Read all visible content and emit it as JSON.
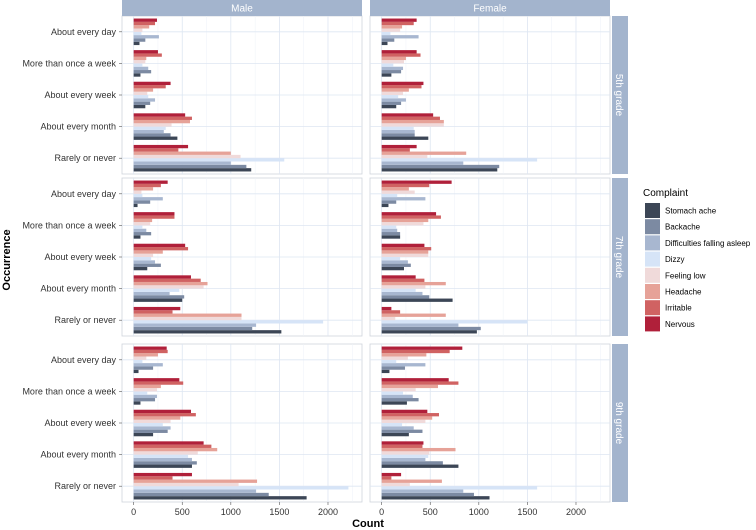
{
  "chart_data": {
    "type": "bar",
    "orientation": "horizontal",
    "xlabel": "Count",
    "ylabel": "Occurrence",
    "xlim": [
      -120,
      2350
    ],
    "xticks": [
      0,
      500,
      1000,
      1500,
      2000
    ],
    "col_facets": [
      "Male",
      "Female"
    ],
    "row_facets": [
      "5th grade",
      "7th grade",
      "9th grade"
    ],
    "categories": [
      "About every day",
      "More than once a week",
      "About every week",
      "About every month",
      "Rarely or never"
    ],
    "legend": {
      "title": "Complaint",
      "entries": [
        {
          "name": "Stomach ache",
          "color": "#3c4656"
        },
        {
          "name": "Backache",
          "color": "#7c8aa2"
        },
        {
          "name": "Difficulties falling asleep",
          "color": "#a8b7d0"
        },
        {
          "name": "Dizzy",
          "color": "#d6e4f7"
        },
        {
          "name": "Feeling low",
          "color": "#f0dada"
        },
        {
          "name": "Headache",
          "color": "#e6a298"
        },
        {
          "name": "Irritable",
          "color": "#d06262"
        },
        {
          "name": "Nervous",
          "color": "#b0203a"
        }
      ]
    },
    "series_order_note": "values per category listed bottom-to-top: Stomach ache, Backache, Difficulties falling asleep, Dizzy, Feeling low, Headache, Irritable, Nervous",
    "panels": [
      {
        "grade": "5th grade",
        "gender": "Male",
        "values": [
          [
            60,
            120,
            260,
            80,
            90,
            160,
            220,
            240
          ],
          [
            70,
            180,
            150,
            90,
            120,
            130,
            290,
            250
          ],
          [
            120,
            170,
            220,
            150,
            140,
            200,
            330,
            380
          ],
          [
            450,
            380,
            310,
            330,
            390,
            580,
            600,
            530
          ],
          [
            1210,
            1160,
            1000,
            1550,
            1100,
            1000,
            460,
            560
          ]
        ]
      },
      {
        "grade": "5th grade",
        "gender": "Female",
        "values": [
          [
            60,
            130,
            380,
            90,
            190,
            210,
            330,
            360
          ],
          [
            100,
            200,
            220,
            120,
            230,
            250,
            400,
            360
          ],
          [
            150,
            200,
            250,
            170,
            220,
            280,
            410,
            430
          ],
          [
            480,
            340,
            340,
            330,
            640,
            640,
            600,
            530
          ],
          [
            1190,
            1210,
            840,
            1600,
            470,
            870,
            290,
            360
          ]
        ]
      },
      {
        "grade": "7th grade",
        "gender": "Male",
        "values": [
          [
            40,
            170,
            300,
            90,
            80,
            200,
            280,
            350
          ],
          [
            70,
            180,
            130,
            90,
            170,
            190,
            420,
            420
          ],
          [
            140,
            280,
            220,
            180,
            200,
            300,
            560,
            530
          ],
          [
            500,
            520,
            370,
            470,
            720,
            760,
            690,
            590
          ],
          [
            1520,
            1220,
            1260,
            1950,
            1110,
            1110,
            400,
            480
          ]
        ]
      },
      {
        "grade": "7th grade",
        "gender": "Female",
        "values": [
          [
            70,
            150,
            450,
            160,
            340,
            280,
            490,
            720
          ],
          [
            190,
            190,
            160,
            150,
            430,
            480,
            610,
            560
          ],
          [
            230,
            300,
            270,
            190,
            480,
            480,
            510,
            440
          ],
          [
            730,
            490,
            420,
            350,
            450,
            660,
            440,
            350
          ],
          [
            980,
            1020,
            790,
            1500,
            140,
            660,
            190,
            100
          ]
        ]
      },
      {
        "grade": "9th grade",
        "gender": "Male",
        "values": [
          [
            50,
            200,
            300,
            90,
            130,
            250,
            350,
            340
          ],
          [
            70,
            220,
            240,
            140,
            240,
            280,
            510,
            470
          ],
          [
            200,
            350,
            380,
            300,
            380,
            480,
            640,
            590
          ],
          [
            600,
            650,
            600,
            560,
            660,
            860,
            800,
            720
          ],
          [
            1780,
            1390,
            1260,
            2210,
            1080,
            1270,
            400,
            600
          ]
        ]
      },
      {
        "grade": "9th grade",
        "gender": "Female",
        "values": [
          [
            80,
            240,
            450,
            150,
            270,
            460,
            700,
            830
          ],
          [
            260,
            380,
            320,
            220,
            350,
            580,
            790,
            690
          ],
          [
            280,
            420,
            330,
            210,
            450,
            520,
            590,
            470
          ],
          [
            790,
            630,
            450,
            480,
            490,
            760,
            420,
            430
          ],
          [
            1110,
            950,
            840,
            1600,
            290,
            620,
            100,
            200
          ]
        ]
      }
    ]
  }
}
